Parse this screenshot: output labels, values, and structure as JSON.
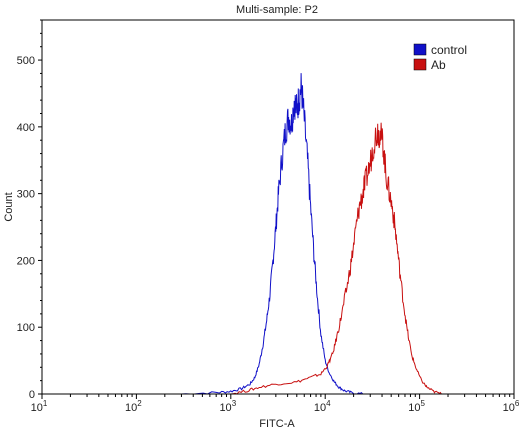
{
  "chart_data": {
    "type": "line",
    "title": "Multi-sample: P2",
    "xlabel": "FITC-A",
    "ylabel": "Count",
    "x_scale": "log",
    "xlim": [
      10,
      1000000
    ],
    "ylim": [
      0,
      560
    ],
    "x_ticks": [
      {
        "value": 10,
        "base": "10",
        "exp": "1"
      },
      {
        "value": 100,
        "base": "10",
        "exp": "2"
      },
      {
        "value": 1000,
        "base": "10",
        "exp": "3"
      },
      {
        "value": 10000,
        "base": "10",
        "exp": "4"
      },
      {
        "value": 100000,
        "base": "10",
        "exp": "5"
      },
      {
        "value": 1000000,
        "base": "10",
        "exp": "6"
      }
    ],
    "y_ticks": [
      0,
      100,
      200,
      300,
      400,
      500
    ],
    "grid": false,
    "legend_position": "top-right",
    "series": [
      {
        "name": "control",
        "color": "#1010c8",
        "x": [
          300,
          700,
          1000,
          1300,
          1600,
          1800,
          2000,
          2200,
          2400,
          2600,
          2800,
          3000,
          3200,
          3500,
          3800,
          4100,
          4400,
          4700,
          5000,
          5300,
          5600,
          6000,
          6500,
          7000,
          7600,
          8200,
          9000,
          10000,
          11000,
          12500,
          14000,
          16000,
          19000,
          25000
        ],
        "y": [
          0,
          2,
          4,
          8,
          15,
          25,
          45,
          75,
          110,
          150,
          200,
          250,
          300,
          355,
          395,
          415,
          405,
          440,
          425,
          445,
          460,
          410,
          350,
          280,
          210,
          150,
          90,
          50,
          32,
          18,
          10,
          5,
          2,
          0
        ]
      },
      {
        "name": "Ab",
        "color": "#c81010",
        "x": [
          1000,
          1500,
          2000,
          3000,
          5000,
          7000,
          9000,
          10500,
          12000,
          13500,
          15000,
          17000,
          19000,
          21000,
          23000,
          25000,
          27000,
          30000,
          33000,
          36000,
          38000,
          41000,
          44000,
          48000,
          52000,
          56000,
          61000,
          67000,
          74000,
          82000,
          92000,
          105000,
          120000,
          140000,
          170000
        ],
        "y": [
          0,
          5,
          10,
          15,
          18,
          25,
          30,
          42,
          60,
          90,
          120,
          160,
          200,
          245,
          280,
          300,
          320,
          345,
          380,
          395,
          390,
          375,
          330,
          300,
          275,
          240,
          190,
          140,
          95,
          60,
          38,
          20,
          10,
          4,
          0
        ]
      }
    ]
  }
}
